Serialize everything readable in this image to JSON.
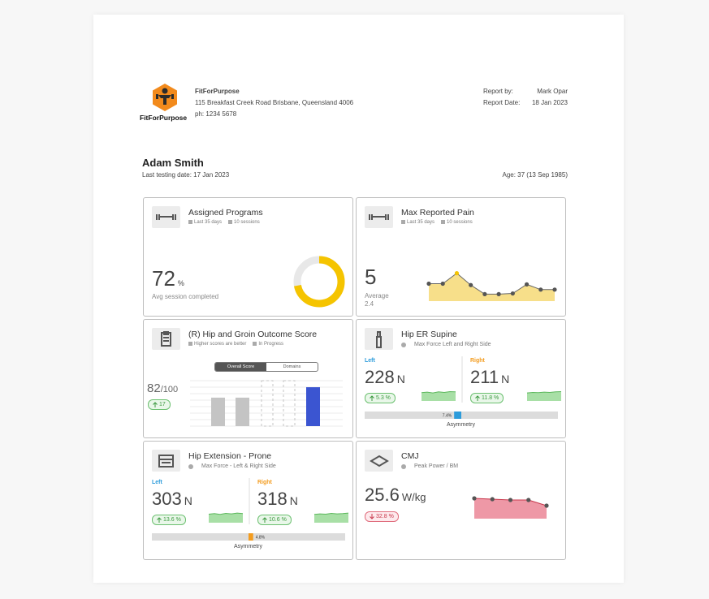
{
  "header": {
    "logo_text": "FitForPurpose",
    "company": "FitForPurpose",
    "address": "115 Breakfast Creek Road Brisbane, Queensland 4006",
    "phone": "ph: 1234 5678",
    "report_by_label": "Report by:",
    "report_by": "Mark Opar",
    "report_date_label": "Report Date:",
    "report_date": "18 Jan 2023"
  },
  "patient": {
    "name": "Adam Smith",
    "last_testing": "Last testing date: 17 Jan 2023",
    "age": "Age: 37 (13 Sep 1985)"
  },
  "cards": [
    {
      "type": "donut",
      "title": "Assigned Programs",
      "meta": [
        "Last 35 days",
        "10 sessions"
      ],
      "value": 72,
      "unit": "%",
      "caption": "Avg session completed",
      "ylim": [
        0,
        100
      ],
      "color": "#f5c400"
    },
    {
      "type": "trend",
      "title": "Max Reported Pain",
      "meta": [
        "Last 35 days",
        "10 sessions"
      ],
      "value": 5,
      "caption": "Average",
      "sub_value": "2.4",
      "trend": [
        5,
        5,
        8,
        4.6,
        2,
        2,
        2.2,
        4.8,
        3.3,
        3.3
      ],
      "ylim": [
        0,
        10
      ],
      "color": "#f7df8a",
      "highlight": "#f5c400"
    },
    {
      "type": "bars",
      "title": "(R) Hip and Groin Outcome Score",
      "meta": [
        "Higher scores are better",
        "In Progress"
      ],
      "value": "82",
      "suffix": "/100",
      "change": "17",
      "tabs": [
        "Overall Score",
        "Domains"
      ],
      "bars": [
        60,
        60,
        null,
        null,
        82
      ],
      "ylim": [
        0,
        130
      ],
      "colors": [
        "#c4c4c4",
        "#c4c4c4",
        "#c4c4c4",
        "#c4c4c4",
        "#3b55d1"
      ]
    },
    {
      "type": "sides",
      "title": "Hip ER Supine",
      "subtitle": "Max Force Left and Right Side",
      "left": {
        "label": "Left",
        "color": "#2d9cdb",
        "value": "228",
        "unit": "N",
        "change": "5.3 %",
        "trend": [
          3.2,
          3.4,
          3.1,
          3.5,
          3.3,
          3.6,
          3.5
        ],
        "ylim": [
          0,
          5
        ]
      },
      "right": {
        "label": "Right",
        "color": "#f39c1f",
        "value": "211",
        "unit": "N",
        "change": "11.8 %",
        "trend": [
          3.1,
          3.3,
          3.2,
          3.4,
          3.3,
          3.5,
          3.6
        ],
        "ylim": [
          0,
          5
        ]
      },
      "asymmetry": {
        "value": 7.4,
        "label": "7.4%"
      },
      "asym_lim": [
        0,
        100
      ],
      "stronger": "left",
      "asym_label": "Asymmetry"
    },
    {
      "type": "sides",
      "title": "Hip Extension - Prone",
      "subtitle": "Max Force - Left & Right Side",
      "left": {
        "label": "Left",
        "color": "#2d9cdb",
        "value": "303",
        "unit": "N",
        "change": "13.6 %",
        "trend": [
          3.3,
          3.5,
          3.2,
          3.6,
          3.4,
          3.7,
          3.5
        ],
        "ylim": [
          0,
          5
        ]
      },
      "right": {
        "label": "Right",
        "color": "#f39c1f",
        "value": "318",
        "unit": "N",
        "change": "10.6 %",
        "trend": [
          3.2,
          3.4,
          3.3,
          3.6,
          3.4,
          3.5,
          3.7
        ],
        "ylim": [
          0,
          5
        ]
      },
      "asymmetry": {
        "value": 4.8,
        "label": "4.8%"
      },
      "asym_lim": [
        0,
        100
      ],
      "stronger": "right",
      "asym_label": "Asymmetry"
    },
    {
      "type": "cmj",
      "title": "CMJ",
      "subtitle": "Peak Power / BM",
      "value": "25.6",
      "unit": "W/kg",
      "change": "32.8 %",
      "trend": [
        25,
        24,
        23,
        23,
        16
      ],
      "ylim": [
        0,
        30
      ],
      "color": "#ee98a6"
    }
  ]
}
